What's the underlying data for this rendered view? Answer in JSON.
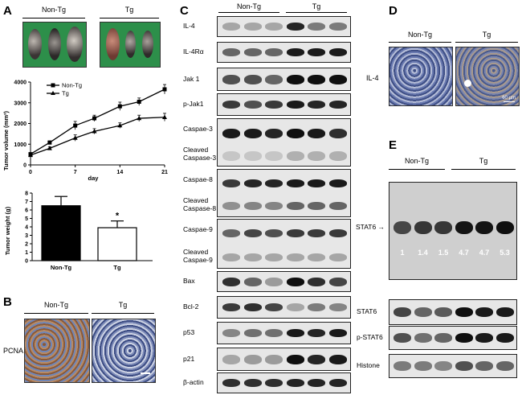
{
  "panels": {
    "A": "A",
    "B": "B",
    "C": "C",
    "D": "D",
    "E": "E"
  },
  "groups": {
    "non_tg": "Non-Tg",
    "tg": "Tg"
  },
  "panelA": {
    "line_chart": {
      "type": "line",
      "xlabel": "day",
      "ylabel": "Tumor volume (mm³)",
      "xticks": [
        0,
        7,
        14,
        21
      ],
      "yticks": [
        0,
        1000,
        2000,
        3000,
        4000
      ],
      "xlim": [
        0,
        21
      ],
      "ylim": [
        0,
        4000
      ],
      "legend_position": "top-left",
      "series": [
        {
          "name": "Non-Tg",
          "marker": "square",
          "x": [
            0,
            3,
            7,
            10,
            14,
            17,
            21
          ],
          "y": [
            520,
            1080,
            1900,
            2250,
            2830,
            3050,
            3650
          ],
          "err": [
            60,
            80,
            200,
            150,
            200,
            180,
            230
          ]
        },
        {
          "name": "Tg",
          "marker": "triangle",
          "x": [
            0,
            3,
            7,
            10,
            14,
            17,
            21
          ],
          "y": [
            470,
            800,
            1300,
            1620,
            1900,
            2250,
            2300
          ],
          "err": [
            60,
            80,
            150,
            130,
            130,
            150,
            190
          ]
        }
      ]
    },
    "bar_chart": {
      "type": "bar",
      "ylabel": "Tumor weight (g)",
      "yticks": [
        0,
        1,
        2,
        3,
        4,
        5,
        6,
        7,
        8
      ],
      "ylim": [
        0,
        8
      ],
      "categories": [
        "Non-Tg",
        "Tg"
      ],
      "values": [
        6.5,
        3.9
      ],
      "errors": [
        1.1,
        0.8
      ],
      "colors": [
        "#000000",
        "#ffffff"
      ],
      "significance": "*"
    }
  },
  "panelB": {
    "marker": "PCNA"
  },
  "panelC": {
    "labels": [
      "IL-4",
      "IL-4Rα",
      "Jak 1",
      "p-Jak1",
      "Caspae-3",
      "Cleaved Caspase-3",
      "Caspae-8",
      "Cleaved Caspase-8",
      "Caspae-9",
      "Cleaved Caspae-9",
      "Bax",
      "Bcl-2",
      "p53",
      "p21",
      "β-actin"
    ]
  },
  "panelD": {
    "marker": "IL-4",
    "scale": "60 µm"
  },
  "panelE": {
    "arrow_label": "STAT6 →",
    "ratios": [
      "1",
      "1.4",
      "1.5",
      "4.7",
      "4.7",
      "5.3"
    ],
    "lower_labels": [
      "STAT6",
      "p-STAT6",
      "Histone"
    ]
  }
}
